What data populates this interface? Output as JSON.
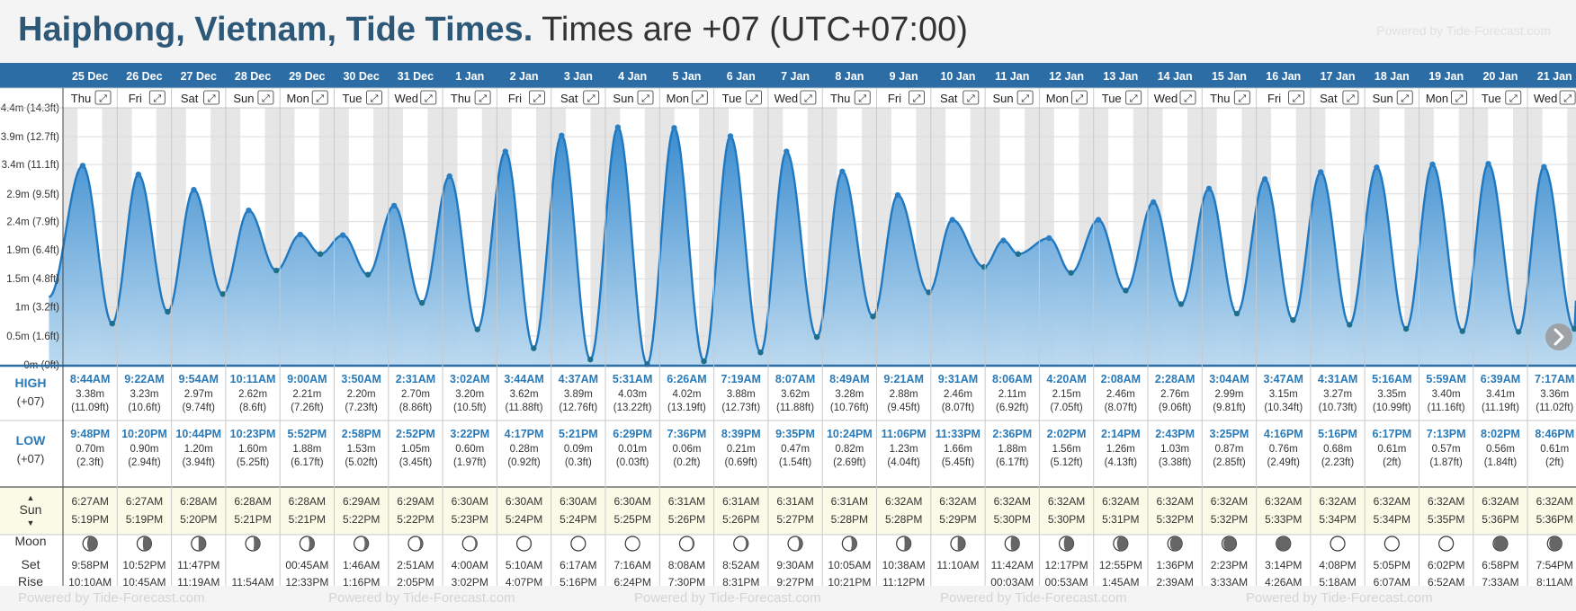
{
  "header": {
    "location": "Haiphong, Vietnam, Tide Times.",
    "timezone_note": "Times are +07 (UTC+07:00)",
    "powered_by": "Powered by Tide-Forecast.com"
  },
  "labels": {
    "high": "HIGH",
    "low": "LOW",
    "utc": "(+07)",
    "sun": "Sun",
    "moon": "Moon",
    "set": "Set",
    "rise": "Rise",
    "sun_up_arrow": "▲",
    "sun_down_arrow": "▼",
    "expand_glyph": "⤢"
  },
  "colors": {
    "header_bar": "#2d6da6",
    "tide_fill": "#3a8ccf",
    "tide_line": "#1f78c0",
    "high_text": "#2a7ab8",
    "low_text": "#2a7ab8",
    "sun_bg": "#fbfae6"
  },
  "chart_data": {
    "type": "area",
    "ylabel_ticks": [
      "0m (0ft)",
      "0.5m (1.6ft)",
      "1m (3.2ft)",
      "1.5m (4.8ft)",
      "1.9m (6.4ft)",
      "2.4m (7.9ft)",
      "2.9m (9.5ft)",
      "3.4m (11.1ft)",
      "3.9m (12.7ft)",
      "4.4m (14.3ft)"
    ],
    "ytick_values": [
      0,
      0.49,
      0.98,
      1.46,
      1.95,
      2.43,
      2.9,
      3.4,
      3.87,
      4.36
    ],
    "ylim": [
      0,
      4.36
    ],
    "days": [
      {
        "date": "25 Dec",
        "dow": "Thu",
        "high_time": "8:44AM",
        "high_m": "3.38m",
        "high_ft": "(11.09ft)",
        "low_time": "9:48PM",
        "low_m": "0.70m",
        "low_ft": "(2.3ft)",
        "sunrise": "6:27AM",
        "sunset": "5:19PM",
        "moonset": "9:58PM",
        "moonrise": "10:10AM",
        "high_val": 3.38,
        "low_val": 0.7,
        "moon_phase": 0.3
      },
      {
        "date": "26 Dec",
        "dow": "Fri",
        "high_time": "9:22AM",
        "high_m": "3.23m",
        "high_ft": "(10.6ft)",
        "low_time": "10:20PM",
        "low_m": "0.90m",
        "low_ft": "(2.94ft)",
        "sunrise": "6:27AM",
        "sunset": "5:19PM",
        "moonset": "10:52PM",
        "moonrise": "10:45AM",
        "high_val": 3.23,
        "low_val": 0.9,
        "moon_phase": 0.4
      },
      {
        "date": "27 Dec",
        "dow": "Sat",
        "high_time": "9:54AM",
        "high_m": "2.97m",
        "high_ft": "(9.74ft)",
        "low_time": "10:44PM",
        "low_m": "1.20m",
        "low_ft": "(3.94ft)",
        "sunrise": "6:28AM",
        "sunset": "5:20PM",
        "moonset": "11:47PM",
        "moonrise": "11:19AM",
        "high_val": 2.97,
        "low_val": 1.2,
        "moon_phase": 0.5
      },
      {
        "date": "28 Dec",
        "dow": "Sun",
        "high_time": "10:11AM",
        "high_m": "2.62m",
        "high_ft": "(8.6ft)",
        "low_time": "10:23PM",
        "low_m": "1.60m",
        "low_ft": "(5.25ft)",
        "sunrise": "6:28AM",
        "sunset": "5:21PM",
        "moonset": "",
        "moonrise": "11:54AM",
        "high_val": 2.62,
        "low_val": 1.6,
        "moon_phase": 0.58
      },
      {
        "date": "29 Dec",
        "dow": "Mon",
        "high_time": "9:00AM",
        "high_m": "2.21m",
        "high_ft": "(7.26ft)",
        "low_time": "5:52PM",
        "low_m": "1.88m",
        "low_ft": "(6.17ft)",
        "sunrise": "6:28AM",
        "sunset": "5:21PM",
        "moonset": "00:45AM",
        "moonrise": "12:33PM",
        "high_val": 2.21,
        "low_val": 1.88,
        "moon_phase": 0.66
      },
      {
        "date": "30 Dec",
        "dow": "Tue",
        "high_time": "3:50AM",
        "high_m": "2.20m",
        "high_ft": "(7.23ft)",
        "low_time": "2:58PM",
        "low_m": "1.53m",
        "low_ft": "(5.02ft)",
        "sunrise": "6:29AM",
        "sunset": "5:22PM",
        "moonset": "1:46AM",
        "moonrise": "1:16PM",
        "high_val": 2.2,
        "low_val": 1.53,
        "moon_phase": 0.74
      },
      {
        "date": "31 Dec",
        "dow": "Wed",
        "high_time": "2:31AM",
        "high_m": "2.70m",
        "high_ft": "(8.86ft)",
        "low_time": "2:52PM",
        "low_m": "1.05m",
        "low_ft": "(3.45ft)",
        "sunrise": "6:29AM",
        "sunset": "5:22PM",
        "moonset": "2:51AM",
        "moonrise": "2:05PM",
        "high_val": 2.7,
        "low_val": 1.05,
        "moon_phase": 0.82
      },
      {
        "date": "1 Jan",
        "dow": "Thu",
        "high_time": "3:02AM",
        "high_m": "3.20m",
        "high_ft": "(10.5ft)",
        "low_time": "3:22PM",
        "low_m": "0.60m",
        "low_ft": "(1.97ft)",
        "sunrise": "6:30AM",
        "sunset": "5:23PM",
        "moonset": "4:00AM",
        "moonrise": "3:02PM",
        "high_val": 3.2,
        "low_val": 0.6,
        "moon_phase": 0.88
      },
      {
        "date": "2 Jan",
        "dow": "Fri",
        "high_time": "3:44AM",
        "high_m": "3.62m",
        "high_ft": "(11.88ft)",
        "low_time": "4:17PM",
        "low_m": "0.28m",
        "low_ft": "(0.92ft)",
        "sunrise": "6:30AM",
        "sunset": "5:24PM",
        "moonset": "5:10AM",
        "moonrise": "4:07PM",
        "high_val": 3.62,
        "low_val": 0.28,
        "moon_phase": 0.94
      },
      {
        "date": "3 Jan",
        "dow": "Sat",
        "high_time": "4:37AM",
        "high_m": "3.89m",
        "high_ft": "(12.76ft)",
        "low_time": "5:21PM",
        "low_m": "0.09m",
        "low_ft": "(0.3ft)",
        "sunrise": "6:30AM",
        "sunset": "5:24PM",
        "moonset": "6:17AM",
        "moonrise": "5:16PM",
        "high_val": 3.89,
        "low_val": 0.09,
        "moon_phase": 1.0
      },
      {
        "date": "4 Jan",
        "dow": "Sun",
        "high_time": "5:31AM",
        "high_m": "4.03m",
        "high_ft": "(13.22ft)",
        "low_time": "6:29PM",
        "low_m": "0.01m",
        "low_ft": "(0.03ft)",
        "sunrise": "6:30AM",
        "sunset": "5:25PM",
        "moonset": "7:16AM",
        "moonrise": "6:24PM",
        "high_val": 4.03,
        "low_val": 0.01,
        "moon_phase": 0.96
      },
      {
        "date": "5 Jan",
        "dow": "Mon",
        "high_time": "6:26AM",
        "high_m": "4.02m",
        "high_ft": "(13.19ft)",
        "low_time": "7:36PM",
        "low_m": "0.06m",
        "low_ft": "(0.2ft)",
        "sunrise": "6:31AM",
        "sunset": "5:26PM",
        "moonset": "8:08AM",
        "moonrise": "7:30PM",
        "high_val": 4.02,
        "low_val": 0.06,
        "moon_phase": 0.9
      },
      {
        "date": "6 Jan",
        "dow": "Tue",
        "high_time": "7:19AM",
        "high_m": "3.88m",
        "high_ft": "(12.73ft)",
        "low_time": "8:39PM",
        "low_m": "0.21m",
        "low_ft": "(0.69ft)",
        "sunrise": "6:31AM",
        "sunset": "5:26PM",
        "moonset": "8:52AM",
        "moonrise": "8:31PM",
        "high_val": 3.88,
        "low_val": 0.21,
        "moon_phase": 0.84
      },
      {
        "date": "7 Jan",
        "dow": "Wed",
        "high_time": "8:07AM",
        "high_m": "3.62m",
        "high_ft": "(11.88ft)",
        "low_time": "9:35PM",
        "low_m": "0.47m",
        "low_ft": "(1.54ft)",
        "sunrise": "6:31AM",
        "sunset": "5:27PM",
        "moonset": "9:30AM",
        "moonrise": "9:27PM",
        "high_val": 3.62,
        "low_val": 0.47,
        "moon_phase": 0.76
      },
      {
        "date": "8 Jan",
        "dow": "Thu",
        "high_time": "8:49AM",
        "high_m": "3.28m",
        "high_ft": "(10.76ft)",
        "low_time": "10:24PM",
        "low_m": "0.82m",
        "low_ft": "(2.69ft)",
        "sunrise": "6:31AM",
        "sunset": "5:28PM",
        "moonset": "10:05AM",
        "moonrise": "10:21PM",
        "high_val": 3.28,
        "low_val": 0.82,
        "moon_phase": 0.66
      },
      {
        "date": "9 Jan",
        "dow": "Fri",
        "high_time": "9:21AM",
        "high_m": "2.88m",
        "high_ft": "(9.45ft)",
        "low_time": "11:06PM",
        "low_m": "1.23m",
        "low_ft": "(4.04ft)",
        "sunrise": "6:32AM",
        "sunset": "5:28PM",
        "moonset": "10:38AM",
        "moonrise": "11:12PM",
        "high_val": 2.88,
        "low_val": 1.23,
        "moon_phase": 0.56
      },
      {
        "date": "10 Jan",
        "dow": "Sat",
        "high_time": "9:31AM",
        "high_m": "2.46m",
        "high_ft": "(8.07ft)",
        "low_time": "11:33PM",
        "low_m": "1.66m",
        "low_ft": "(5.45ft)",
        "sunrise": "6:32AM",
        "sunset": "5:29PM",
        "moonset": "11:10AM",
        "moonrise": "",
        "high_val": 2.46,
        "low_val": 1.66,
        "moon_phase": 0.48
      },
      {
        "date": "11 Jan",
        "dow": "Sun",
        "high_time": "8:06AM",
        "high_m": "2.11m",
        "high_ft": "(6.92ft)",
        "low_time": "2:36PM",
        "low_m": "1.88m",
        "low_ft": "(6.17ft)",
        "sunrise": "6:32AM",
        "sunset": "5:30PM",
        "moonset": "11:42AM",
        "moonrise": "00:03AM",
        "high_val": 2.11,
        "low_val": 1.88,
        "moon_phase": 0.4
      },
      {
        "date": "12 Jan",
        "dow": "Mon",
        "high_time": "4:20AM",
        "high_m": "2.15m",
        "high_ft": "(7.05ft)",
        "low_time": "2:02PM",
        "low_m": "1.56m",
        "low_ft": "(5.12ft)",
        "sunrise": "6:32AM",
        "sunset": "5:30PM",
        "moonset": "12:17PM",
        "moonrise": "00:53AM",
        "high_val": 2.15,
        "low_val": 1.56,
        "moon_phase": 0.32
      },
      {
        "date": "13 Jan",
        "dow": "Tue",
        "high_time": "2:08AM",
        "high_m": "2.46m",
        "high_ft": "(8.07ft)",
        "low_time": "2:14PM",
        "low_m": "1.26m",
        "low_ft": "(4.13ft)",
        "sunrise": "6:32AM",
        "sunset": "5:31PM",
        "moonset": "12:55PM",
        "moonrise": "1:45AM",
        "high_val": 2.46,
        "low_val": 1.26,
        "moon_phase": 0.24
      },
      {
        "date": "14 Jan",
        "dow": "Wed",
        "high_time": "2:28AM",
        "high_m": "2.76m",
        "high_ft": "(9.06ft)",
        "low_time": "2:43PM",
        "low_m": "1.03m",
        "low_ft": "(3.38ft)",
        "sunrise": "6:32AM",
        "sunset": "5:32PM",
        "moonset": "1:36PM",
        "moonrise": "2:39AM",
        "high_val": 2.76,
        "low_val": 1.03,
        "moon_phase": 0.16
      },
      {
        "date": "15 Jan",
        "dow": "Thu",
        "high_time": "3:04AM",
        "high_m": "2.99m",
        "high_ft": "(9.81ft)",
        "low_time": "3:25PM",
        "low_m": "0.87m",
        "low_ft": "(2.85ft)",
        "sunrise": "6:32AM",
        "sunset": "5:32PM",
        "moonset": "2:23PM",
        "moonrise": "3:33AM",
        "high_val": 2.99,
        "low_val": 0.87,
        "moon_phase": 0.1
      },
      {
        "date": "16 Jan",
        "dow": "Fri",
        "high_time": "3:47AM",
        "high_m": "3.15m",
        "high_ft": "(10.34ft)",
        "low_time": "4:16PM",
        "low_m": "0.76m",
        "low_ft": "(2.49ft)",
        "sunrise": "6:32AM",
        "sunset": "5:33PM",
        "moonset": "3:14PM",
        "moonrise": "4:26AM",
        "high_val": 3.15,
        "low_val": 0.76,
        "moon_phase": 0.05
      },
      {
        "date": "17 Jan",
        "dow": "Sat",
        "high_time": "4:31AM",
        "high_m": "3.27m",
        "high_ft": "(10.73ft)",
        "low_time": "5:16PM",
        "low_m": "0.68m",
        "low_ft": "(2.23ft)",
        "sunrise": "6:32AM",
        "sunset": "5:34PM",
        "moonset": "4:08PM",
        "moonrise": "5:18AM",
        "high_val": 3.27,
        "low_val": 0.68,
        "moon_phase": 0.02
      },
      {
        "date": "18 Jan",
        "dow": "Sun",
        "high_time": "5:16AM",
        "high_m": "3.35m",
        "high_ft": "(10.99ft)",
        "low_time": "6:17PM",
        "low_m": "0.61m",
        "low_ft": "(2ft)",
        "sunrise": "6:32AM",
        "sunset": "5:34PM",
        "moonset": "5:05PM",
        "moonrise": "6:07AM",
        "high_val": 3.35,
        "low_val": 0.61,
        "moon_phase": 0.0
      },
      {
        "date": "19 Jan",
        "dow": "Mon",
        "high_time": "5:59AM",
        "high_m": "3.40m",
        "high_ft": "(11.16ft)",
        "low_time": "7:13PM",
        "low_m": "0.57m",
        "low_ft": "(1.87ft)",
        "sunrise": "6:32AM",
        "sunset": "5:35PM",
        "moonset": "6:02PM",
        "moonrise": "6:52AM",
        "high_val": 3.4,
        "low_val": 0.57,
        "moon_phase": 0.02
      },
      {
        "date": "20 Jan",
        "dow": "Tue",
        "high_time": "6:39AM",
        "high_m": "3.41m",
        "high_ft": "(11.19ft)",
        "low_time": "8:02PM",
        "low_m": "0.56m",
        "low_ft": "(1.84ft)",
        "sunrise": "6:32AM",
        "sunset": "5:36PM",
        "moonset": "6:58PM",
        "moonrise": "7:33AM",
        "high_val": 3.41,
        "low_val": 0.56,
        "moon_phase": 0.06
      },
      {
        "date": "21 Jan",
        "dow": "Wed",
        "high_time": "7:17AM",
        "high_m": "3.36m",
        "high_ft": "(11.02ft)",
        "low_time": "8:46PM",
        "low_m": "0.61m",
        "low_ft": "(2ft)",
        "sunrise": "6:32AM",
        "sunset": "5:36PM",
        "moonset": "7:54PM",
        "moonrise": "8:11AM",
        "high_val": 3.36,
        "low_val": 0.61,
        "moon_phase": 0.12
      }
    ]
  }
}
